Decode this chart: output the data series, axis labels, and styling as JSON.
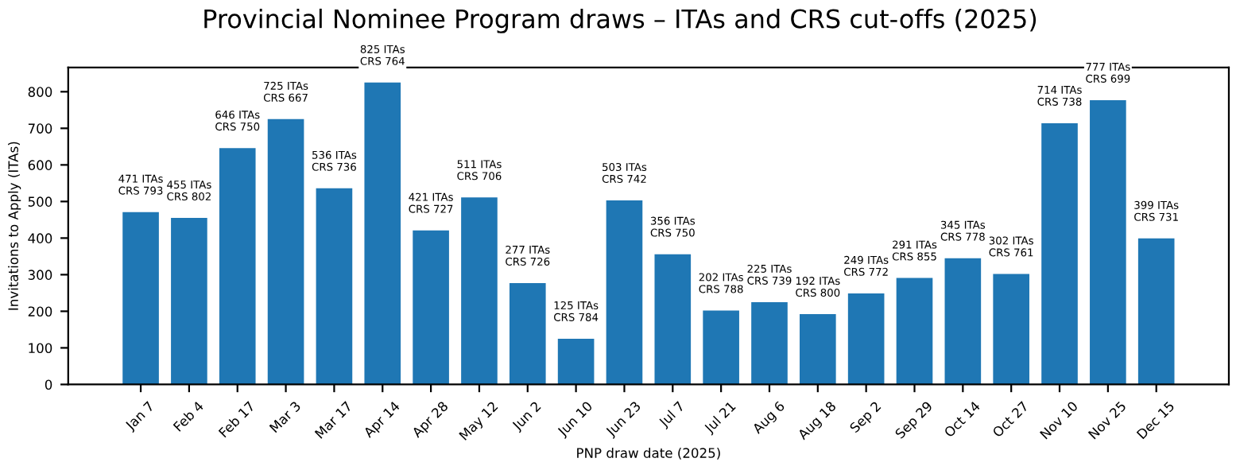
{
  "chart_data": {
    "type": "bar",
    "title": "Provincial Nominee Program draws – ITAs and CRS cut-offs (2025)",
    "xlabel": "PNP draw date (2025)",
    "ylabel": "Invitations to Apply (ITAs)",
    "categories": [
      "Jan 7",
      "Feb 4",
      "Feb 17",
      "Mar 3",
      "Mar 17",
      "Apr 14",
      "Apr 28",
      "May 12",
      "Jun 2",
      "Jun 10",
      "Jun 23",
      "Jul 7",
      "Jul 21",
      "Aug 6",
      "Aug 18",
      "Sep 2",
      "Sep 29",
      "Oct 14",
      "Oct 27",
      "Nov 10",
      "Nov 25",
      "Dec 15"
    ],
    "values": [
      471,
      455,
      646,
      725,
      536,
      825,
      421,
      511,
      277,
      125,
      503,
      356,
      202,
      225,
      192,
      249,
      291,
      345,
      302,
      714,
      777,
      399
    ],
    "value_labels": [
      "471 ITAs\nCRS 793",
      "455 ITAs\nCRS 802",
      "646 ITAs\nCRS 750",
      "725 ITAs\nCRS 667",
      "536 ITAs\nCRS 736",
      "825 ITAs\nCRS 764",
      "421 ITAs\nCRS 727",
      "511 ITAs\nCRS 706",
      "277 ITAs\nCRS 726",
      "125 ITAs\nCRS 784",
      "503 ITAs\nCRS 742",
      "356 ITAs\nCRS 750",
      "202 ITAs\nCRS 788",
      "225 ITAs\nCRS 739",
      "192 ITAs\nCRS 800",
      "249 ITAs\nCRS 772",
      "291 ITAs\nCRS 855",
      "345 ITAs\nCRS 778",
      "302 ITAs\nCRS 761",
      "714 ITAs\nCRS 738",
      "777 ITAs\nCRS 699",
      "399 ITAs\nCRS 731"
    ],
    "color": "#1f77b4",
    "ylim": [
      0,
      866
    ],
    "yticks": [
      0,
      100,
      200,
      300,
      400,
      500,
      600,
      700,
      800
    ],
    "grid": false
  }
}
